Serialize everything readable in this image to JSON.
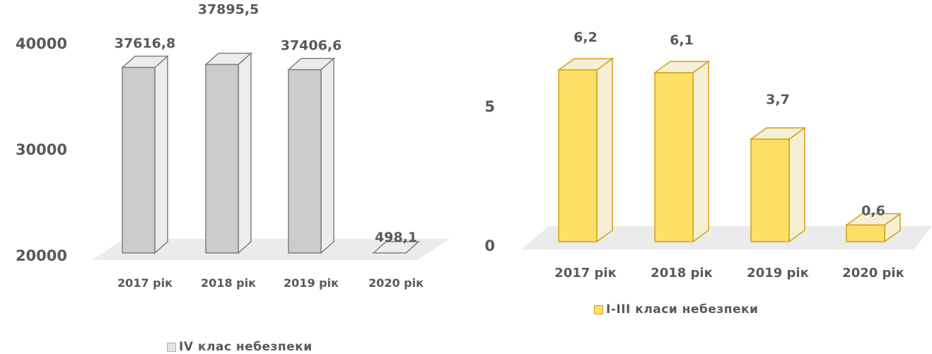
{
  "chart_data": [
    {
      "type": "bar",
      "categories": [
        "2017 рік",
        "2018 рік",
        "2019 рік",
        "2020 рік"
      ],
      "series": [
        {
          "name": "IV клас небезпеки",
          "values": [
            37616.8,
            37895.5,
            37406.6,
            498.1
          ]
        }
      ],
      "data_labels": [
        "37616,8",
        "37895,5",
        "37406,6",
        "498,1"
      ],
      "yticks": [
        "20000",
        "30000",
        "40000"
      ],
      "ylim": [
        20000,
        40000
      ],
      "axis_break": true,
      "legend": "bottom",
      "grid": false,
      "colors": {
        "fill": "#cccccc",
        "stroke": "#808080",
        "side": "#ececec"
      }
    },
    {
      "type": "bar",
      "categories": [
        "2017 рік",
        "2018 рік",
        "2019 рік",
        "2020 рік"
      ],
      "series": [
        {
          "name": "I-III класи небезпеки",
          "values": [
            6.2,
            6.1,
            3.7,
            0.6
          ]
        }
      ],
      "data_labels": [
        "6,2",
        "6,1",
        "3,7",
        "0,6"
      ],
      "yticks": [
        "0",
        "5"
      ],
      "ylim": [
        0,
        8
      ],
      "legend": "bottom",
      "grid": false,
      "colors": {
        "fill": "#ffe066",
        "stroke": "#d4a017",
        "side": "#f5efd6"
      }
    }
  ]
}
